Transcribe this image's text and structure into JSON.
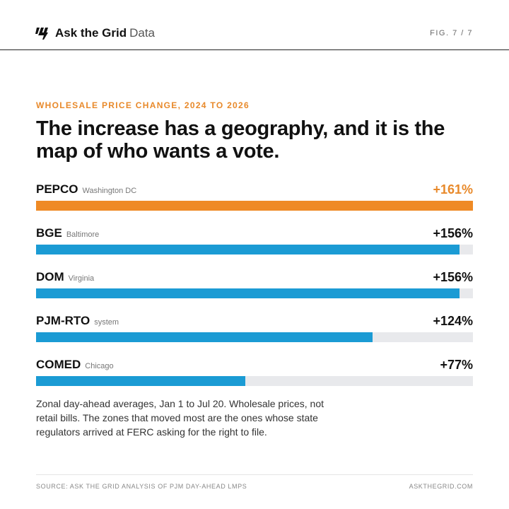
{
  "header": {
    "brand_name": "Ask the Grid",
    "brand_suffix": "Data",
    "fig_label": "FIG. 7 / 7",
    "logo_icon": "lightning-stripes-icon"
  },
  "kicker": "WHOLESALE PRICE CHANGE, 2024 TO 2026",
  "headline": "The increase has a geography, and it is the map of who wants a vote.",
  "colors": {
    "accent": "#ef8a25",
    "bar": "#1b9bd4",
    "track": "#e8e9ec"
  },
  "chart_data": {
    "type": "bar",
    "orientation": "horizontal",
    "title": "The increase has a geography, and it is the map of who wants a vote.",
    "categories": [
      "PEPCO",
      "BGE",
      "DOM",
      "PJM-RTO",
      "COMED"
    ],
    "region_labels": [
      "Washington DC",
      "Baltimore",
      "Virginia",
      "system",
      "Chicago"
    ],
    "values": [
      161,
      156,
      156,
      124,
      77
    ],
    "value_labels": [
      "+161%",
      "+156%",
      "+156%",
      "+124%",
      "+77%"
    ],
    "unit": "%",
    "xlim": [
      0,
      161
    ],
    "highlight_index": 0,
    "grid": false,
    "legend": "none"
  },
  "note": "Zonal day-ahead averages, Jan 1 to Jul 20. Wholesale prices, not retail bills. The zones that moved most are the ones whose state regulators arrived at FERC asking for the right to file.",
  "footer": {
    "source": "SOURCE: ASK THE GRID ANALYSIS OF PJM DAY-AHEAD LMPS",
    "site": "ASKTHEGRID.COM"
  }
}
